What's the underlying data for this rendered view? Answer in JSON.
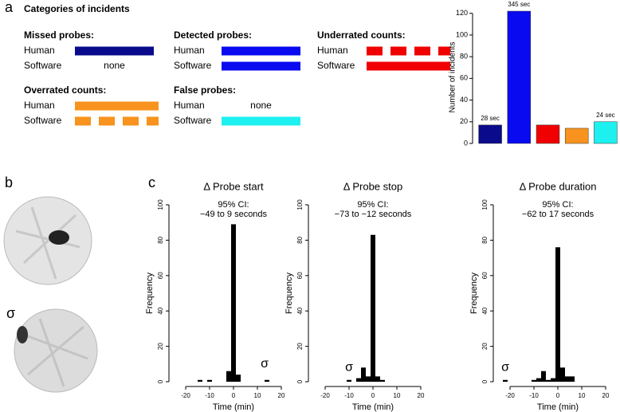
{
  "panel_labels": [
    "a",
    "b",
    "c"
  ],
  "legend": {
    "title": "Categories of incidents",
    "groups": [
      {
        "name": "Missed probes:",
        "rows": [
          {
            "label": "Human",
            "color": "#0a0a8c",
            "style": "solid"
          },
          {
            "label": "Software",
            "text": "none"
          }
        ]
      },
      {
        "name": "Detected probes:",
        "rows": [
          {
            "label": "Human",
            "color": "#0a0af0",
            "style": "solid"
          },
          {
            "label": "Software",
            "color": "#0a0af0",
            "style": "solid"
          }
        ]
      },
      {
        "name": "Underrated counts:",
        "rows": [
          {
            "label": "Human",
            "color": "#f00000",
            "style": "dashed"
          },
          {
            "label": "Software",
            "color": "#f00000",
            "style": "solid"
          }
        ]
      },
      {
        "name": "Overrated counts:",
        "rows": [
          {
            "label": "Human",
            "color": "#f7931e",
            "style": "solid"
          },
          {
            "label": "Software",
            "color": "#f7931e",
            "style": "dashed"
          }
        ]
      },
      {
        "name": "False probes:",
        "rows": [
          {
            "label": "Human",
            "text": "none"
          },
          {
            "label": "Software",
            "color": "#1ef0f0",
            "style": "solid"
          }
        ]
      }
    ]
  },
  "brain_images": {
    "label": "σ"
  },
  "chart_data": [
    {
      "type": "bar",
      "y_label": "Number of incidents",
      "categories": [
        null,
        null,
        null,
        null,
        null
      ],
      "values": [
        17,
        122,
        17,
        14,
        20
      ],
      "bar_labels": [
        "28 sec",
        "345 sec",
        null,
        null,
        "24 sec"
      ],
      "colors": [
        "#0a0a8c",
        "#0a0af0",
        "#f00000",
        "#f7931e",
        "#1ef0f0"
      ],
      "ylim": [
        0,
        122
      ],
      "yticks": [
        0,
        20,
        40,
        60,
        80,
        100,
        120
      ]
    },
    {
      "type": "histogram",
      "title": "Δ Probe start",
      "subtitle": [
        "95% CI:",
        "−49 to 9 seconds"
      ],
      "x_label": "Time (min)",
      "y_label": "Frequency",
      "color": "#000000",
      "bins": [
        -25,
        -23,
        -21,
        -19,
        -17,
        -15,
        -13,
        -11,
        -9,
        -7,
        -5,
        -3,
        -1,
        1,
        3,
        5,
        7,
        9,
        11,
        13,
        15,
        17,
        19,
        21,
        23,
        25
      ],
      "values": [
        0,
        0,
        0,
        0,
        0,
        1,
        0,
        1,
        0,
        0,
        0,
        6,
        89,
        4,
        0,
        0,
        0,
        0,
        0,
        1,
        0,
        0,
        0,
        0,
        0
      ],
      "annotation": {
        "text": "σ",
        "x": 13,
        "y": 10
      },
      "xlim": [
        -25,
        25
      ],
      "xticks": [
        -20,
        -10,
        0,
        10,
        20
      ],
      "ylim": [
        0,
        100
      ],
      "yticks": [
        0,
        20,
        40,
        60,
        80,
        100
      ]
    },
    {
      "type": "histogram",
      "title": "Δ Probe stop",
      "subtitle": [
        "95% CI:",
        "−73 to −12 seconds"
      ],
      "x_label": "Time (min)",
      "y_label": "Frequency",
      "color": "#000000",
      "bins": [
        -25,
        -23,
        -21,
        -19,
        -17,
        -15,
        -13,
        -11,
        -9,
        -7,
        -5,
        -3,
        -1,
        1,
        3,
        5,
        7,
        9,
        11,
        13,
        15,
        17,
        19,
        21,
        23,
        25
      ],
      "values": [
        0,
        0,
        0,
        0,
        0,
        0,
        0,
        1,
        0,
        2,
        8,
        3,
        83,
        3,
        1,
        0,
        0,
        0,
        0,
        0,
        0,
        0,
        0,
        0,
        0
      ],
      "annotation": {
        "text": "σ",
        "x": -10,
        "y": 8
      },
      "xlim": [
        -25,
        25
      ],
      "xticks": [
        -20,
        -10,
        0,
        10,
        20
      ],
      "ylim": [
        0,
        100
      ],
      "yticks": [
        0,
        20,
        40,
        60,
        80,
        100
      ]
    },
    {
      "type": "histogram",
      "title": "Δ Probe duration",
      "subtitle": [
        "95% CI:",
        "−62 to 17 seconds"
      ],
      "x_label": "Time (min)",
      "y_label": "Frequency",
      "color": "#000000",
      "bins": [
        -25,
        -23,
        -21,
        -19,
        -17,
        -15,
        -13,
        -11,
        -9,
        -7,
        -5,
        -3,
        -1,
        1,
        3,
        5,
        7,
        9,
        11,
        13,
        15,
        17,
        19,
        21,
        23,
        25
      ],
      "values": [
        0,
        1,
        0,
        0,
        0,
        0,
        0,
        1,
        2,
        6,
        1,
        2,
        76,
        8,
        3,
        3,
        0,
        0,
        0,
        0,
        0,
        0,
        0,
        0,
        0
      ],
      "annotation": {
        "text": "σ",
        "x": -22,
        "y": 8
      },
      "xlim": [
        -25,
        25
      ],
      "xticks": [
        -20,
        -10,
        0,
        10,
        20
      ],
      "ylim": [
        0,
        100
      ],
      "yticks": [
        0,
        20,
        40,
        60,
        80,
        100
      ]
    }
  ]
}
